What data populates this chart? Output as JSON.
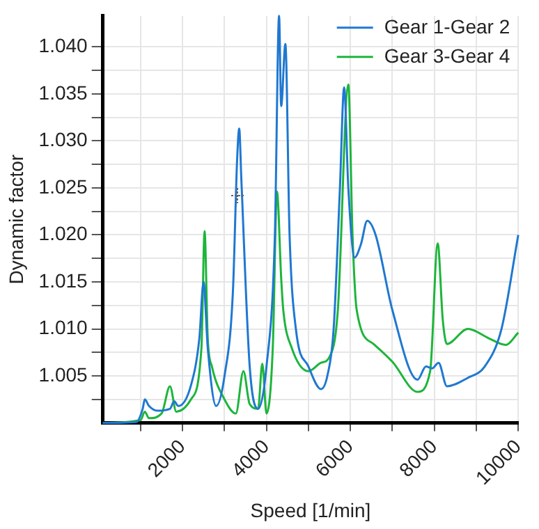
{
  "chart_data": {
    "type": "line",
    "xlabel": "Speed [1/min]",
    "ylabel": "Dynamic factor",
    "xlim": [
      100,
      10000
    ],
    "xticks": [
      {
        "value": 1000,
        "label": null
      },
      2000,
      {
        "value": 3000,
        "label": null
      },
      4000,
      {
        "value": 5000,
        "label": null
      },
      6000,
      {
        "value": 7000,
        "label": null
      },
      8000,
      {
        "value": 9000,
        "label": null
      },
      10000
    ],
    "ylim": [
      1.0,
      1.0433
    ],
    "yticks": [
      {
        "value": 1.0025,
        "label": null
      },
      1.005,
      {
        "value": 1.0075,
        "label": null
      },
      {
        "value": 1.01,
        "label": "1.010"
      },
      {
        "value": 1.0125,
        "label": null
      },
      1.015,
      {
        "value": 1.0175,
        "label": null
      },
      {
        "value": 1.02,
        "label": "1.020"
      },
      {
        "value": 1.0225,
        "label": null
      },
      1.025,
      {
        "value": 1.0275,
        "label": null
      },
      {
        "value": 1.03,
        "label": "1.030"
      },
      {
        "value": 1.0325,
        "label": null
      },
      1.035,
      {
        "value": 1.0375,
        "label": null
      },
      {
        "value": 1.04,
        "label": "1.040"
      }
    ],
    "grid": true,
    "legend": "top right",
    "marker": "none",
    "line_style": "solid",
    "series": [
      {
        "name": "Gear 1-Gear 2",
        "color": "#1f78d1",
        "x": [
          100,
          900,
          1050,
          1100,
          1200,
          1400,
          1700,
          1800,
          1900,
          2200,
          2400,
          2500,
          2600,
          2800,
          3000,
          3200,
          3300,
          3350,
          3400,
          3600,
          3800,
          4000,
          4200,
          4300,
          4350,
          4450,
          4550,
          4700,
          5000,
          5300,
          5450,
          5600,
          5750,
          5850,
          5950,
          6100,
          6250,
          6400,
          6600,
          7000,
          7600,
          7800,
          7950,
          8100,
          8300,
          8800,
          9200,
          9600,
          10000
        ],
        "values": [
          1.0,
          1.0001,
          1.0015,
          1.0025,
          1.0018,
          1.0013,
          1.0015,
          1.0023,
          1.0018,
          1.004,
          1.009,
          1.015,
          1.008,
          1.0018,
          1.005,
          1.014,
          1.028,
          1.0313,
          1.026,
          1.006,
          1.0015,
          1.006,
          1.02,
          1.0433,
          1.0337,
          1.0403,
          1.02,
          1.01,
          1.006,
          1.0036,
          1.005,
          1.01,
          1.025,
          1.0357,
          1.025,
          1.0176,
          1.019,
          1.0215,
          1.02,
          1.012,
          1.0046,
          1.006,
          1.0058,
          1.0064,
          1.0039,
          1.0048,
          1.006,
          1.01,
          1.02
        ]
      },
      {
        "name": "Gear 3-Gear 4",
        "color": "#1db53b",
        "x": [
          100,
          1000,
          1100,
          1200,
          1500,
          1700,
          1850,
          2200,
          2450,
          2525,
          2600,
          2700,
          3000,
          3270,
          3450,
          3600,
          3800,
          3900,
          4000,
          4150,
          4250,
          4350,
          4400,
          4600,
          5000,
          5300,
          5500,
          5700,
          5950,
          6050,
          6150,
          6550,
          7000,
          7600,
          7900,
          8080,
          8200,
          8300,
          8800,
          9300,
          9700,
          10000
        ],
        "values": [
          1.0,
          1.0003,
          1.0012,
          1.0005,
          1.001,
          1.0039,
          1.0012,
          1.0025,
          1.008,
          1.0204,
          1.009,
          1.006,
          1.0025,
          1.001,
          1.0055,
          1.002,
          1.0015,
          1.0063,
          1.001,
          1.008,
          1.0246,
          1.0154,
          1.012,
          1.008,
          1.0055,
          1.0064,
          1.007,
          1.012,
          1.036,
          1.02,
          1.012,
          1.0084,
          1.0065,
          1.0033,
          1.0055,
          1.0191,
          1.011,
          1.0084,
          1.01,
          1.009,
          1.0083,
          1.0096
        ]
      }
    ]
  }
}
